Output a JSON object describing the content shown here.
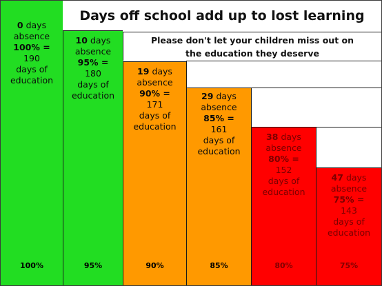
{
  "title": "Days off school add up to lost learning",
  "subtitle_line1": "Please don't let your children miss out on",
  "subtitle_line2": "the education they deserve",
  "colors": {
    "green": "#22dd22",
    "orange": "#ff9900",
    "red": "#ff0000"
  },
  "columns": [
    {
      "days": "0",
      "days_label": "days",
      "absence": "absence",
      "pct": "100% =",
      "education_days": "190",
      "edu1": "days of",
      "edu2": "education",
      "bottom": "100%"
    },
    {
      "days": "10",
      "days_label": "days",
      "absence": "absence",
      "pct": "95% =",
      "education_days": "180",
      "edu1": "days of",
      "edu2": "education",
      "bottom": "95%"
    },
    {
      "days": "19",
      "days_label": "days",
      "absence": "absence",
      "pct": "90% =",
      "education_days": "171",
      "edu1": "days of",
      "edu2": "education",
      "bottom": "90%"
    },
    {
      "days": "29",
      "days_label": "days",
      "absence": "absence",
      "pct": "85% =",
      "education_days": "161",
      "edu1": "days of",
      "edu2": "education",
      "bottom": "85%"
    },
    {
      "days": "38",
      "days_label": "days",
      "absence": "absence",
      "pct": "80% =",
      "education_days": "152",
      "edu1": "days of",
      "edu2": "education",
      "bottom": "80%"
    },
    {
      "days": "47",
      "days_label": "days",
      "absence": "absence",
      "pct": "75% =",
      "education_days": "143",
      "edu1": "days of",
      "edu2": "education",
      "bottom": "75%"
    }
  ]
}
